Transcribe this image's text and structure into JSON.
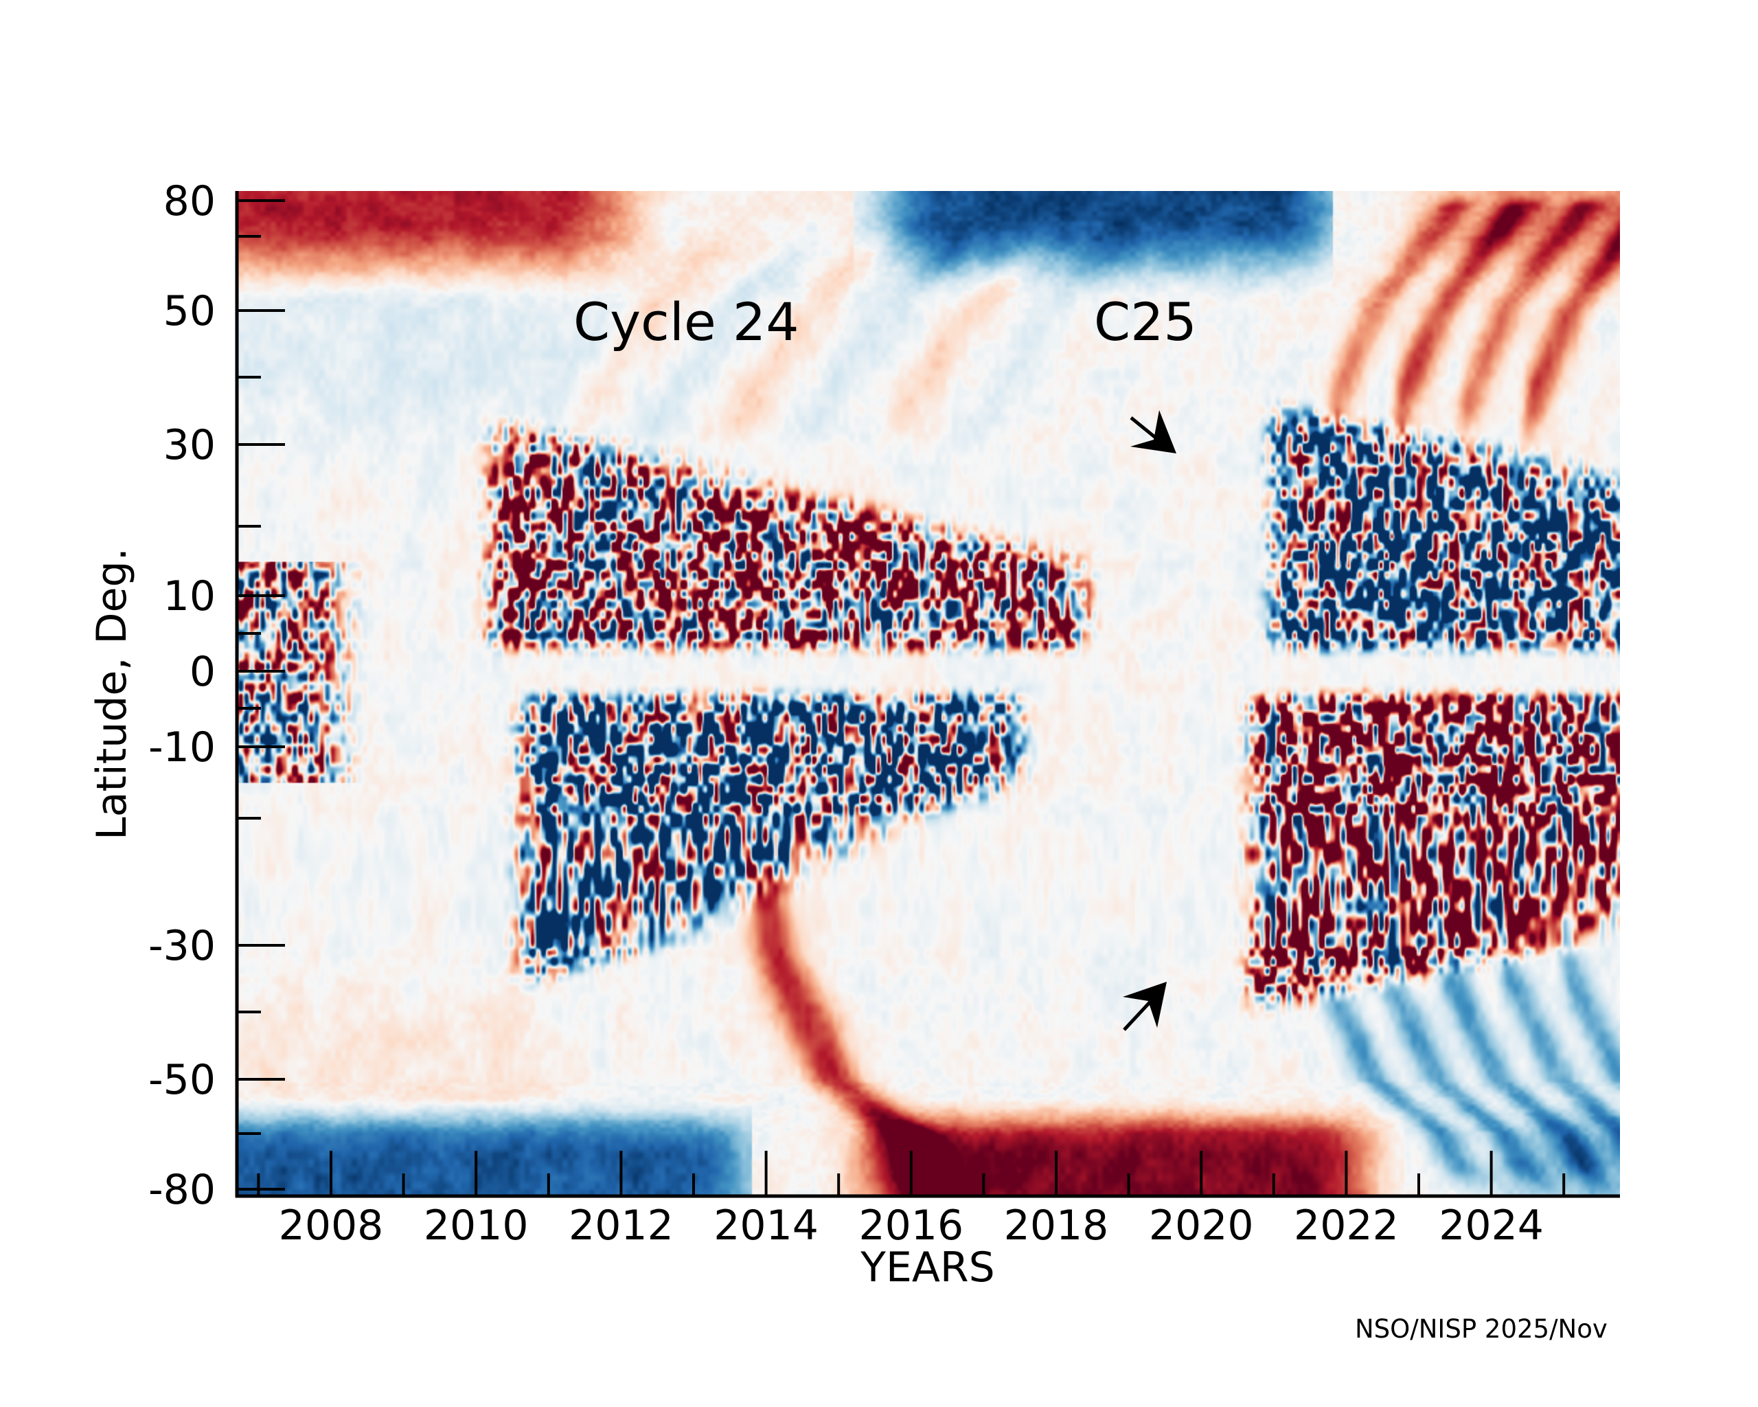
{
  "chart_data": {
    "type": "heatmap",
    "title": "",
    "xlabel": "YEARS",
    "ylabel": "Latitude, Deg.",
    "xlim": [
      2006.68,
      2025.78
    ],
    "ylim": [
      -82,
      82
    ],
    "y_scale": "sine-latitude (non-linear)",
    "x_ticks_major": [
      2008,
      2010,
      2012,
      2014,
      2016,
      2018,
      2020,
      2022,
      2024
    ],
    "x_tick_labels": [
      "2008",
      "2010",
      "2012",
      "2014",
      "2016",
      "2018",
      "2020",
      "2022",
      "2024"
    ],
    "x_ticks_minor": [
      2007,
      2009,
      2011,
      2013,
      2015,
      2017,
      2019,
      2021,
      2023,
      2025
    ],
    "y_ticks_major": [
      80,
      50,
      30,
      10,
      0,
      -10,
      -30,
      -50,
      -80
    ],
    "y_tick_labels": [
      "80",
      "50",
      "30",
      "10",
      "0",
      "-10",
      "-30",
      "-50",
      "-80"
    ],
    "y_ticks_minor": [
      70,
      40,
      20,
      5,
      -5,
      -20,
      -40,
      -70
    ],
    "colormap": {
      "name": "RdBu_r",
      "negative": "#053061",
      "mid": "#f7f7f7",
      "positive": "#67001f",
      "stops": [
        "#053061",
        "#2166ac",
        "#4393c3",
        "#92c5de",
        "#d1e5f0",
        "#f7f7f7",
        "#fddbc7",
        "#f4a582",
        "#d6604d",
        "#b2182b",
        "#67001f"
      ]
    },
    "grid": false,
    "legend": "none",
    "features": [
      {
        "name": "north polar field",
        "years": [
          2006.68,
          2012.5
        ],
        "lat": [
          55,
          82
        ],
        "sign": "positive",
        "strength": 0.75
      },
      {
        "name": "north polar field",
        "years": [
          2015.5,
          2021.5
        ],
        "lat": [
          65,
          82
        ],
        "sign": "negative",
        "strength": 0.85
      },
      {
        "name": "north polar field",
        "years": [
          2022.5,
          2025.78
        ],
        "lat": [
          50,
          82
        ],
        "sign": "positive",
        "strength": 0.5
      },
      {
        "name": "south polar field",
        "years": [
          2006.68,
          2013.5
        ],
        "lat": [
          -82,
          -65
        ],
        "sign": "negative",
        "strength": 0.75
      },
      {
        "name": "south polar field",
        "years": [
          2015.5,
          2022.5
        ],
        "lat": [
          -82,
          -68
        ],
        "sign": "positive",
        "strength": 0.9
      },
      {
        "name": "south polar field",
        "years": [
          2023.5,
          2025.78
        ],
        "lat": [
          -82,
          -60
        ],
        "sign": "negative",
        "strength": 0.45
      },
      {
        "name": "cycle 24 north activity band",
        "years": [
          2010,
          2018.3
        ],
        "lat": [
          2,
          35
        ],
        "sign": "mixed-positive",
        "strength": 0.9
      },
      {
        "name": "cycle 24 south activity band",
        "years": [
          2010.5,
          2017.5
        ],
        "lat": [
          -35,
          -2
        ],
        "sign": "mixed-negative",
        "strength": 0.9
      },
      {
        "name": "cycle 25 north activity band",
        "years": [
          2021,
          2025.78
        ],
        "lat": [
          2,
          35
        ],
        "sign": "mixed-negative",
        "strength": 0.95
      },
      {
        "name": "cycle 25 south activity band",
        "years": [
          2020.6,
          2025.78
        ],
        "lat": [
          -38,
          -2
        ],
        "sign": "mixed-positive",
        "strength": 0.95
      },
      {
        "name": "cycle 24 poleward surge (south)",
        "years": [
          2013.5,
          2016.5
        ],
        "lat": [
          -75,
          -15
        ],
        "sign": "positive",
        "strength": 0.7
      },
      {
        "name": "cycle 25 poleward surges (north)",
        "years": [
          2021.5,
          2025.78
        ],
        "lat": [
          30,
          80
        ],
        "sign": "positive",
        "strength": 0.6
      },
      {
        "name": "cycle 25 poleward surges (south)",
        "years": [
          2021.5,
          2025.78
        ],
        "lat": [
          -75,
          -30
        ],
        "sign": "negative",
        "strength": 0.6
      }
    ],
    "annotations": [
      {
        "text": "Cycle 24",
        "year": 2010.7,
        "lat": 48
      },
      {
        "text": "C25",
        "year": 2018.5,
        "lat": 48
      },
      {
        "type": "arrow",
        "label": "C25 north onset",
        "from": {
          "year": 2019.1,
          "lat": 35
        },
        "to": {
          "year": 2019.7,
          "lat": 29
        }
      },
      {
        "type": "arrow",
        "label": "C25 south onset",
        "from": {
          "year": 2019.0,
          "lat": -43
        },
        "to": {
          "year": 2019.6,
          "lat": -36
        }
      }
    ]
  },
  "credit": "NSO/NISP 2025/Nov"
}
